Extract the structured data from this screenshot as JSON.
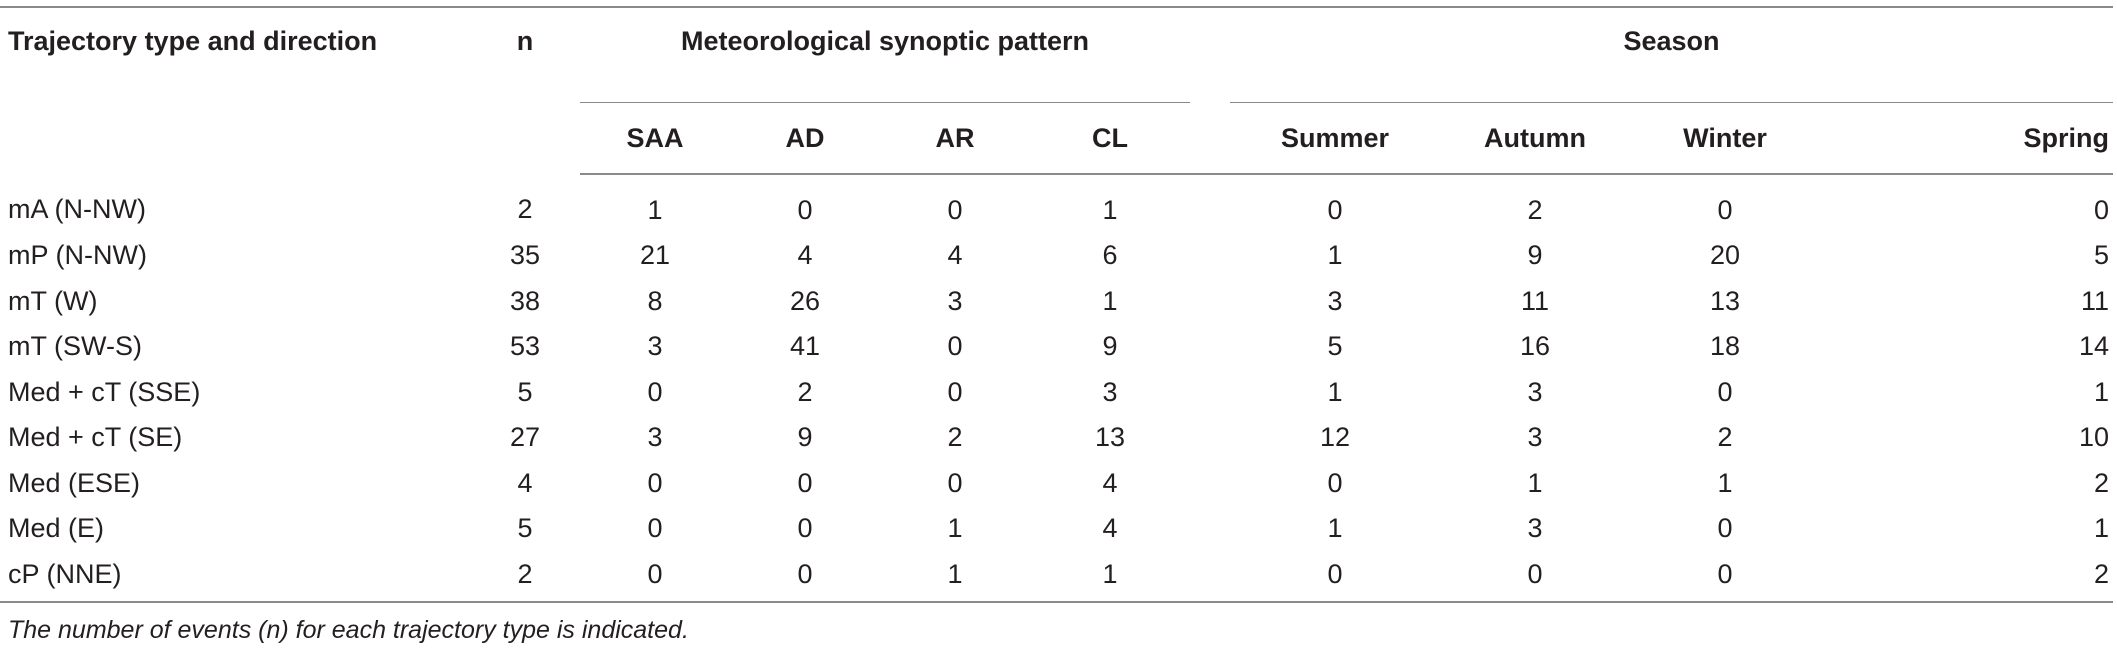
{
  "table": {
    "header": {
      "col_type": "Trajectory type and direction",
      "col_n": "n",
      "group_met": "Meteorological synoptic pattern",
      "group_season": "Season",
      "met_sub": [
        "SAA",
        "AD",
        "AR",
        "CL"
      ],
      "season_sub": [
        "Summer",
        "Autumn",
        "Winter",
        "Spring"
      ]
    },
    "rows": [
      {
        "type": "mA (N-NW)",
        "n": "2",
        "saa": "1",
        "ad": "0",
        "ar": "0",
        "cl": "1",
        "summer": "0",
        "autumn": "2",
        "winter": "0",
        "spring": "0"
      },
      {
        "type": "mP (N-NW)",
        "n": "35",
        "saa": "21",
        "ad": "4",
        "ar": "4",
        "cl": "6",
        "summer": "1",
        "autumn": "9",
        "winter": "20",
        "spring": "5"
      },
      {
        "type": "mT (W)",
        "n": "38",
        "saa": "8",
        "ad": "26",
        "ar": "3",
        "cl": "1",
        "summer": "3",
        "autumn": "11",
        "winter": "13",
        "spring": "11"
      },
      {
        "type": "mT (SW-S)",
        "n": "53",
        "saa": "3",
        "ad": "41",
        "ar": "0",
        "cl": "9",
        "summer": "5",
        "autumn": "16",
        "winter": "18",
        "spring": "14"
      },
      {
        "type": "Med + cT (SSE)",
        "n": "5",
        "saa": "0",
        "ad": "2",
        "ar": "0",
        "cl": "3",
        "summer": "1",
        "autumn": "3",
        "winter": "0",
        "spring": "1"
      },
      {
        "type": "Med + cT (SE)",
        "n": "27",
        "saa": "3",
        "ad": "9",
        "ar": "2",
        "cl": "13",
        "summer": "12",
        "autumn": "3",
        "winter": "2",
        "spring": "10"
      },
      {
        "type": "Med (ESE)",
        "n": "4",
        "saa": "0",
        "ad": "0",
        "ar": "0",
        "cl": "4",
        "summer": "0",
        "autumn": "1",
        "winter": "1",
        "spring": "2"
      },
      {
        "type": "Med (E)",
        "n": "5",
        "saa": "0",
        "ad": "0",
        "ar": "1",
        "cl": "4",
        "summer": "1",
        "autumn": "3",
        "winter": "0",
        "spring": "1"
      },
      {
        "type": "cP (NNE)",
        "n": "2",
        "saa": "0",
        "ad": "0",
        "ar": "1",
        "cl": "1",
        "summer": "0",
        "autumn": "0",
        "winter": "0",
        "spring": "2"
      }
    ],
    "footnote": "The number of events (n) for each trajectory type is indicated."
  }
}
